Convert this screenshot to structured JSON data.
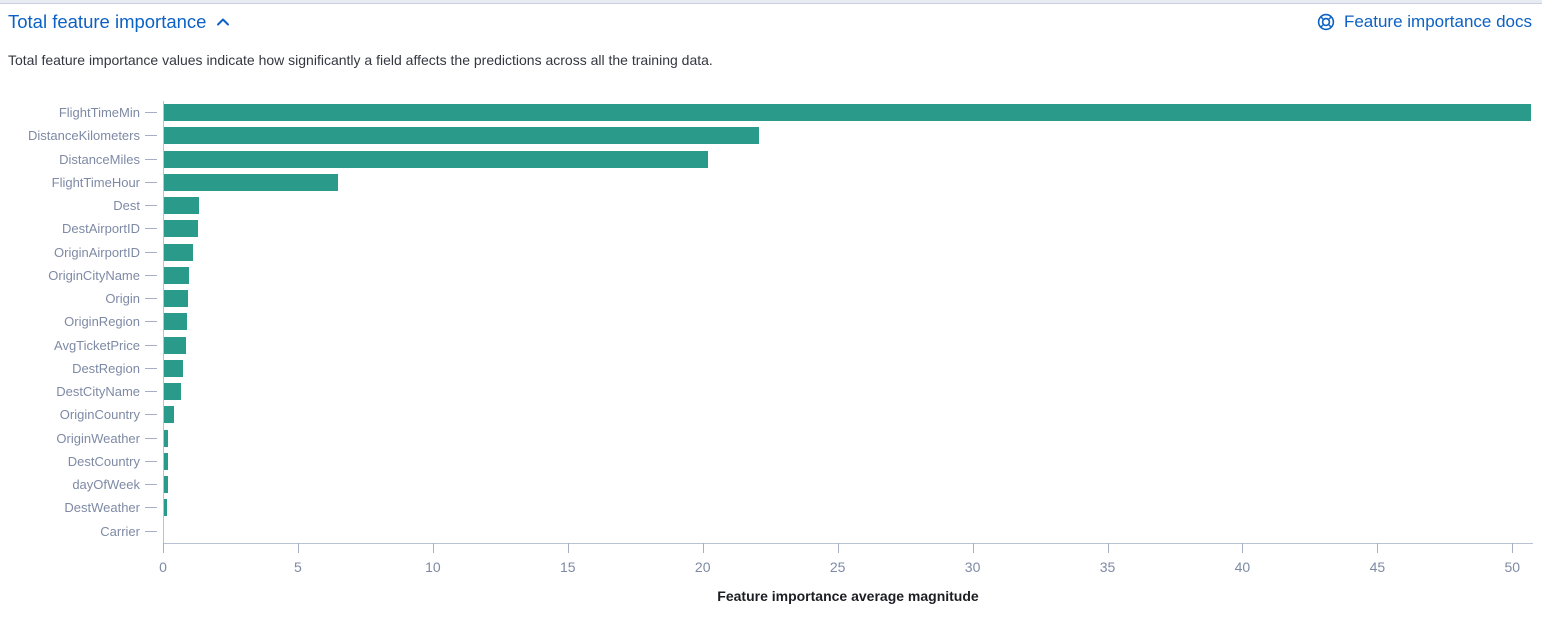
{
  "header": {
    "title": "Total feature importance",
    "toggle_icon": "chevron-up",
    "docs_link": {
      "label": "Feature importance docs",
      "icon": "help-lifebuoy"
    }
  },
  "description": "Total feature importance values indicate how significantly a field affects the predictions across all the training data.",
  "colors": {
    "link_blue": "#0c61c4",
    "bar_teal": "#2a9a8a",
    "axis_label_gray": "#7e8aa5",
    "axis_line": "#b9c1d4",
    "tick_dash": "#a6afc4",
    "body_text": "#343741",
    "axis_title_text": "#1d1e24"
  },
  "chart_data": {
    "type": "bar",
    "orientation": "horizontal",
    "title": "",
    "xlabel": "Feature importance average magnitude",
    "ylabel": "",
    "categories": [
      "FlightTimeMin",
      "DistanceKilometers",
      "DistanceMiles",
      "FlightTimeHour",
      "Dest",
      "DestAirportID",
      "OriginAirportID",
      "OriginCityName",
      "Origin",
      "OriginRegion",
      "AvgTicketPrice",
      "DestRegion",
      "DestCityName",
      "OriginCountry",
      "OriginWeather",
      "DestCountry",
      "dayOfWeek",
      "DestWeather",
      "Carrier"
    ],
    "values": [
      50.7,
      22.1,
      20.2,
      6.5,
      1.35,
      1.3,
      1.1,
      0.98,
      0.94,
      0.89,
      0.85,
      0.75,
      0.65,
      0.42,
      0.2,
      0.2,
      0.17,
      0.15,
      0.05
    ],
    "x_ticks": [
      0,
      5,
      10,
      15,
      20,
      25,
      30,
      35,
      40,
      45,
      50
    ],
    "xlim": [
      0,
      51.1
    ],
    "grid": false,
    "legend": false,
    "bar_color": "#2a9a8a"
  }
}
